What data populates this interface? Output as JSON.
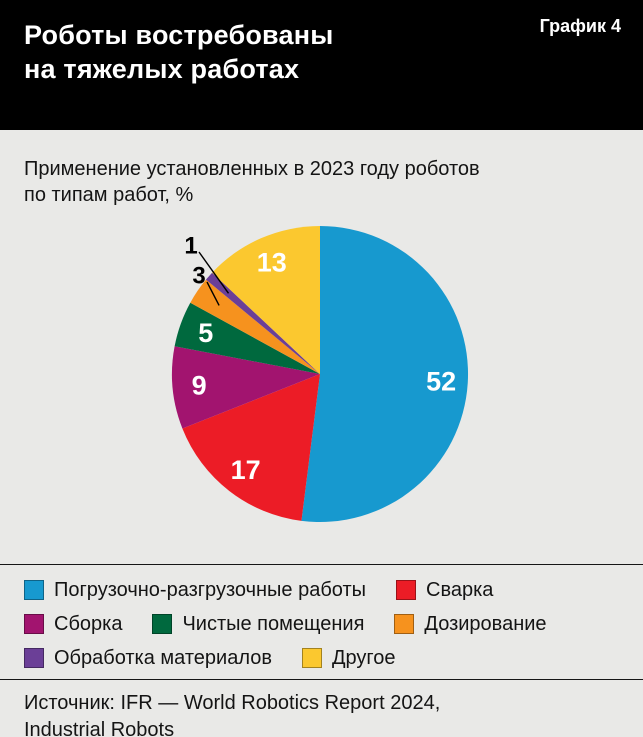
{
  "header": {
    "title_line1": "Роботы востребованы",
    "title_line2": "на тяжелых работах",
    "chart_number": "График 4"
  },
  "subtitle": {
    "line1": "Применение установленных в 2023 году роботов",
    "line2": "по типам работ, %"
  },
  "chart_data": {
    "type": "pie",
    "title": "Применение установленных в 2023 году роботов по типам работ, %",
    "unit": "%",
    "start_angle_deg": 0,
    "direction": "clockwise",
    "slices": [
      {
        "label": "Погрузочно-разгрузочные работы",
        "value": 52,
        "color": "#1799cf",
        "label_inside": true
      },
      {
        "label": "Сварка",
        "value": 17,
        "color": "#ec1c26",
        "label_inside": true
      },
      {
        "label": "Сборка",
        "value": 9,
        "color": "#a2146f",
        "label_inside": true
      },
      {
        "label": "Чистые помещения",
        "value": 5,
        "color": "#00693e",
        "label_inside": true
      },
      {
        "label": "Дозирование",
        "value": 3,
        "color": "#f6921e",
        "label_inside": false
      },
      {
        "label": "Обработка материалов",
        "value": 1,
        "color": "#6b3f97",
        "label_inside": false
      },
      {
        "label": "Другое",
        "value": 13,
        "color": "#fbc82f",
        "label_inside": true
      }
    ],
    "legend_position": "bottom",
    "legend_rows": [
      [
        0,
        1
      ],
      [
        2,
        3,
        4
      ],
      [
        5,
        6
      ]
    ],
    "inside_label_color": "#ffffff",
    "outside_label_color": "#000000"
  },
  "source": {
    "line1": "Источник: IFR — World Robotics Report 2024,",
    "line2": "Industrial Robots"
  }
}
